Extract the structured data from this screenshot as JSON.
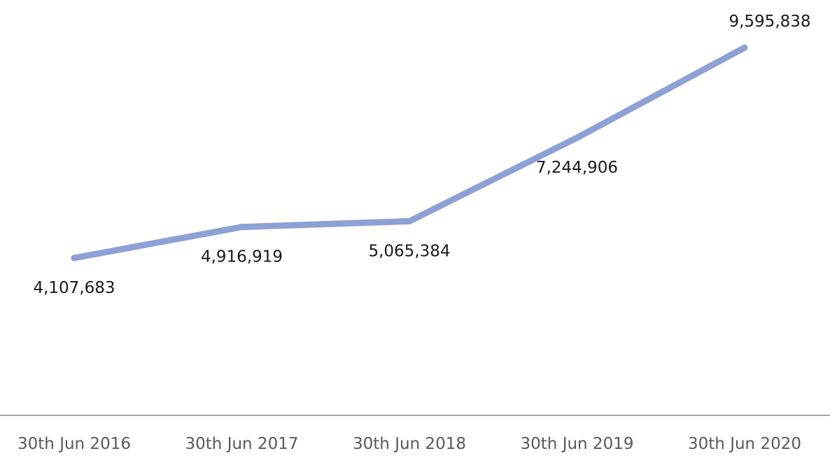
{
  "chart_data": {
    "type": "line",
    "categories": [
      "30th Jun 2016",
      "30th Jun 2017",
      "30th Jun 2018",
      "30th Jun 2019",
      "30th Jun 2020"
    ],
    "series": [
      {
        "values": [
          4107683,
          4916919,
          5065384,
          7244906,
          9595838
        ],
        "labels": [
          "4,107,683",
          "4,916,919",
          "5,065,384",
          "7,244,906",
          "9,595,838"
        ],
        "color": "#8EA0D4"
      }
    ],
    "title": "",
    "xlabel": "",
    "ylabel": "",
    "ylim": [
      0,
      10000000
    ],
    "grid": false,
    "legend": "none",
    "axis_color": "#A6A6A6"
  }
}
